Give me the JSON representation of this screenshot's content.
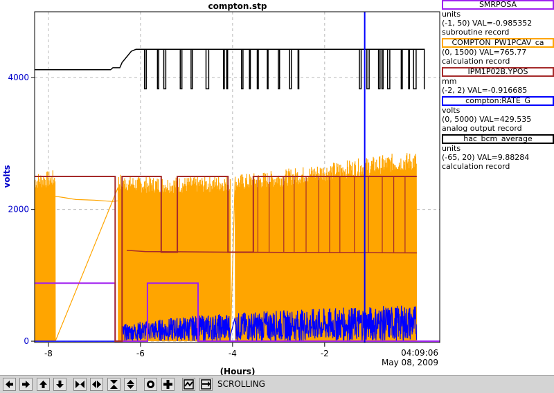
{
  "chart_data": {
    "type": "line",
    "title": "compton.stp",
    "xlabel": "(Hours)",
    "ylabel": "volts",
    "xlim": [
      -8.3,
      0.5
    ],
    "ylim": [
      -20,
      5000
    ],
    "xticks": [
      "-8",
      "-6",
      "-4",
      "-2"
    ],
    "xtick_values": [
      -8,
      -6,
      -4,
      -2
    ],
    "yticks": [
      "0",
      "2000",
      "4000"
    ],
    "ytick_values": [
      0,
      2000,
      4000
    ],
    "time_label": "04:09:06",
    "date_label": "May 08, 2009",
    "cursor_x": -1.13,
    "grid": true,
    "series": [
      {
        "name": "SMRPOSA",
        "color": "#a020f0",
        "x": [
          -8.3,
          -6.55,
          -6.55,
          -5.85,
          -5.85,
          -4.8,
          -4.8,
          -4.75,
          -4.75,
          0.5
        ],
        "values": [
          880,
          880,
          0,
          0,
          880,
          880,
          880,
          880,
          0,
          0
        ]
      },
      {
        "name": "COMPTON_PW1PCAV_ca",
        "color": "#ffa500",
        "band_x": [
          -8.3,
          -7.85,
          -6.5,
          -6,
          -5.5,
          -5,
          -4.5,
          -4,
          -3.5,
          -3,
          -2.5,
          -2,
          -1.5,
          -1,
          -0.5,
          0
        ],
        "band_low": [
          0,
          0,
          0,
          0,
          0,
          0,
          0,
          0,
          0,
          0,
          0,
          0,
          0,
          0,
          0,
          0
        ],
        "band_high": [
          2560,
          2600,
          2550,
          2500,
          2500,
          2500,
          2510,
          2530,
          2560,
          2600,
          2650,
          2700,
          2750,
          2800,
          2850,
          2880
        ],
        "x": [
          -7.85,
          -7.4,
          -7,
          -6.6,
          -6.5
        ],
        "values": [
          2200,
          2150,
          2140,
          2120,
          2130
        ]
      },
      {
        "name": "IPM1P02B.YPOS",
        "color": "#a52a2a",
        "x": [
          -8.3,
          -6.55,
          -6.55,
          -6.4,
          -6.4,
          -5.55,
          -5.55,
          -5.2,
          -5.2,
          -4.1,
          -4.1,
          -3.55,
          -3.55,
          0
        ],
        "values": [
          2500,
          2500,
          0,
          0,
          2500,
          2500,
          1350,
          1350,
          2500,
          2500,
          1350,
          1350,
          2500,
          2500
        ],
        "base_x": [
          -6.3,
          -5.9,
          -4,
          -2,
          0
        ],
        "base_values": [
          1380,
          1360,
          1350,
          1345,
          1340
        ]
      },
      {
        "name": "compton:RATE_G",
        "color": "#0000ff",
        "band_x": [
          -6.4,
          -6,
          -5,
          -4,
          -3,
          -2,
          -1,
          0
        ],
        "band_low": [
          0,
          0,
          0,
          0,
          0,
          0,
          0,
          0
        ],
        "band_high": [
          250,
          300,
          380,
          430,
          470,
          500,
          530,
          550
        ],
        "x": [
          -8.3,
          -6.4
        ],
        "values": [
          0,
          0
        ]
      },
      {
        "name": "hac_bcm_average",
        "color": "#000000",
        "x": [
          -8.3,
          -6.65,
          -6.6,
          -6.45,
          -6.4,
          -6.2,
          -6.1,
          -6.0,
          0
        ],
        "values": [
          4120,
          4120,
          4150,
          4150,
          4230,
          4400,
          4430,
          4430,
          4430
        ],
        "low_value": 3830,
        "noisy_start": -6.0
      }
    ]
  },
  "legend": [
    {
      "name": "SMRPOSA",
      "color": "#a020f0",
      "units": "units",
      "range": "(-1, 50)",
      "val": "VAL=-0.985352",
      "record": "subroutine record"
    },
    {
      "name": "COMPTON_PW1PCAV_ca",
      "color": "#ffa500",
      "units": "",
      "range": "(0, 1500)",
      "val": "VAL=765.77",
      "record": "calculation record"
    },
    {
      "name": "IPM1P02B.YPOS",
      "color": "#a52a2a",
      "units": "mm",
      "range": "(-2, 2)",
      "val": "VAL=-0.916685",
      "record": ""
    },
    {
      "name": "compton:RATE_G",
      "color": "#0000ff",
      "units": "volts",
      "range": "(0, 5000)",
      "val": "VAL=429.535",
      "record": "analog output record"
    },
    {
      "name": "hac_bcm_average",
      "color": "#000000",
      "units": "units",
      "range": "(-65, 20)",
      "val": "VAL=9.88284",
      "record": "calculation record"
    }
  ],
  "toolbar": {
    "status": "SCROLLING",
    "buttons": [
      "left-arrow-icon",
      "right-arrow-icon",
      "up-arrow-icon",
      "down-arrow-icon",
      "zoom-in-x-icon",
      "zoom-out-x-icon",
      "zoom-in-y-icon",
      "zoom-out-y-icon",
      "record-icon",
      "add-icon",
      "toggle-scroll-icon",
      "scroll-icon"
    ]
  }
}
